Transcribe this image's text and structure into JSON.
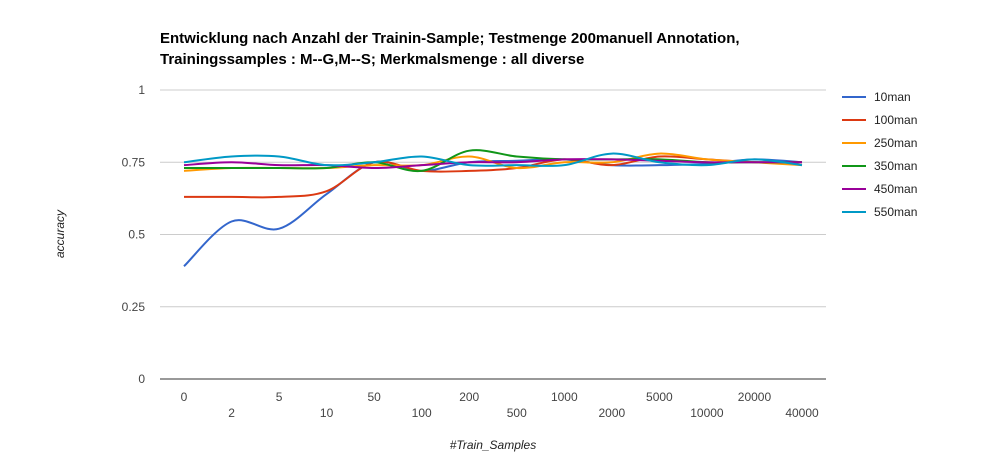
{
  "chart_data": {
    "type": "line",
    "title_lines": [
      "Entwicklung nach Anzahl der Trainin-Sample; Testmenge 200manuell Annotation,",
      "Trainingssamples : M--G,M--S; Merkmalsmenge : all diverse"
    ],
    "xlabel": "#Train_Samples",
    "ylabel": "accuracy",
    "categories": [
      "0",
      "2",
      "5",
      "10",
      "50",
      "100",
      "200",
      "500",
      "1000",
      "2000",
      "5000",
      "10000",
      "20000",
      "40000"
    ],
    "ylim": [
      0,
      1
    ],
    "yticks": [
      "0",
      "0.25",
      "0.5",
      "0.75",
      "1"
    ],
    "grid": true,
    "legend_position": "right",
    "series": [
      {
        "name": "10man",
        "color": "#3366cc",
        "values": [
          0.39,
          0.545,
          0.52,
          0.64,
          0.75,
          0.72,
          0.75,
          0.755,
          0.76,
          0.74,
          0.74,
          0.745,
          0.76,
          0.75
        ]
      },
      {
        "name": "100man",
        "color": "#dc3912",
        "values": [
          0.63,
          0.63,
          0.63,
          0.65,
          0.75,
          0.72,
          0.72,
          0.73,
          0.76,
          0.74,
          0.77,
          0.76,
          0.75,
          0.75
        ]
      },
      {
        "name": "250man",
        "color": "#ff9900",
        "values": [
          0.72,
          0.73,
          0.73,
          0.73,
          0.74,
          0.74,
          0.77,
          0.73,
          0.75,
          0.75,
          0.78,
          0.76,
          0.75,
          0.74
        ]
      },
      {
        "name": "350man",
        "color": "#109618",
        "values": [
          0.73,
          0.73,
          0.73,
          0.73,
          0.75,
          0.72,
          0.79,
          0.77,
          0.76,
          0.76,
          0.76,
          0.75,
          0.75,
          0.75
        ]
      },
      {
        "name": "450man",
        "color": "#990099",
        "values": [
          0.74,
          0.75,
          0.74,
          0.74,
          0.73,
          0.74,
          0.75,
          0.75,
          0.76,
          0.76,
          0.755,
          0.75,
          0.75,
          0.75
        ]
      },
      {
        "name": "550man",
        "color": "#0099c6",
        "values": [
          0.75,
          0.77,
          0.77,
          0.74,
          0.75,
          0.77,
          0.74,
          0.74,
          0.74,
          0.78,
          0.75,
          0.74,
          0.76,
          0.74
        ]
      }
    ]
  }
}
